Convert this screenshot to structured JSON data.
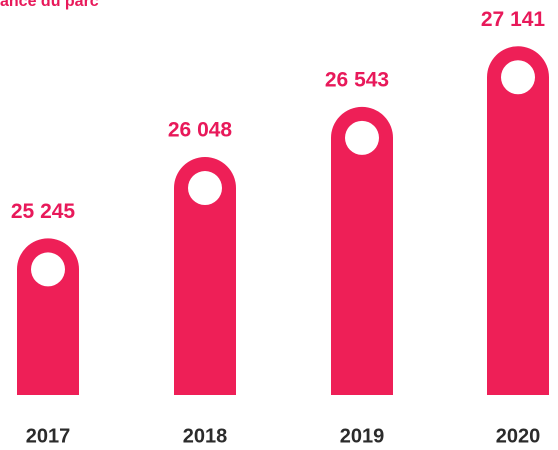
{
  "chart_data": {
    "type": "bar",
    "title": "ance du parc",
    "categories": [
      "2017",
      "2018",
      "2019",
      "2020"
    ],
    "values": [
      25245,
      26048,
      26543,
      27141
    ],
    "value_labels": [
      "25 245",
      "26 048",
      "26 543",
      "27 141"
    ],
    "color": "#ee1f57",
    "ylim": [
      23700,
      27400
    ]
  }
}
